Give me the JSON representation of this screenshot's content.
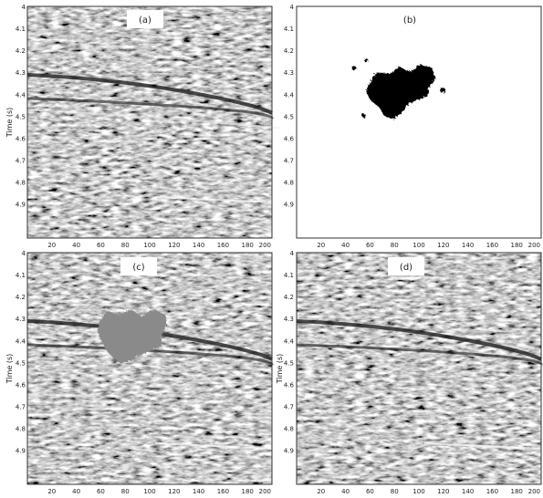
{
  "panels": [
    {
      "id": "a",
      "label": "(a)",
      "kind": "seismic",
      "ylabel": "Time (s)"
    },
    {
      "id": "b",
      "label": "(b)",
      "kind": "mask",
      "ylabel": ""
    },
    {
      "id": "c",
      "label": "(c)",
      "kind": "masked",
      "ylabel": "Time (s)"
    },
    {
      "id": "d",
      "label": "(d)",
      "kind": "reconstructed",
      "ylabel": "Time (s)"
    }
  ],
  "axes": {
    "x_ticks": [
      "20",
      "40",
      "60",
      "80",
      "100",
      "120",
      "140",
      "160",
      "180",
      "200"
    ],
    "y_ticks": [
      "4",
      "4.1",
      "4.2",
      "4.3",
      "4.4",
      "4.5",
      "4.6",
      "4.7",
      "4.8",
      "4.9"
    ]
  },
  "colors": {
    "mask": "#000000",
    "masked_fill": "#8a8a8a",
    "panel_border": "#333333"
  }
}
